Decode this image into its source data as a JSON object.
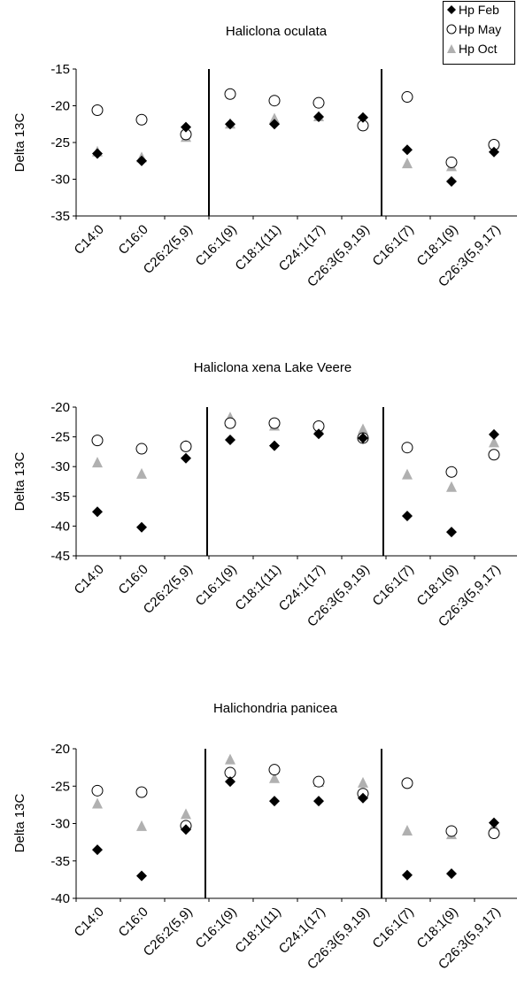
{
  "legend": [
    {
      "name": "Hp Feb",
      "marker": "diamond",
      "color": "#000000"
    },
    {
      "name": "Hp May",
      "marker": "circle",
      "color": "#000000"
    },
    {
      "name": "Hp Oct",
      "marker": "triangle",
      "color": "#b0b0b0"
    }
  ],
  "chart_data": [
    {
      "type": "scatter",
      "title": "Haliclona oculata",
      "ylabel": "Delta 13C",
      "ylim": [
        -35,
        -15
      ],
      "yticks": [
        -15,
        -20,
        -25,
        -30,
        -35
      ],
      "categories": [
        "C14:0",
        "C16:0",
        "C26:2(5,9)",
        "C16:1(9)",
        "C18:1(11)",
        "C24:1(17)",
        "C26:3(5,9,19)",
        "C16:1(7)",
        "C18:1(9)",
        "C26:3(5,9,17)"
      ],
      "series": [
        {
          "name": "Hp Feb",
          "values": [
            -26.5,
            -27.5,
            -22.9,
            -22.5,
            -22.5,
            -21.5,
            -21.6,
            -26,
            -30.3,
            -26.3
          ]
        },
        {
          "name": "Hp May",
          "values": [
            -20.6,
            -21.9,
            -23.9,
            -18.4,
            -19.3,
            -19.6,
            -22.7,
            -18.8,
            -27.7,
            -25.3
          ]
        },
        {
          "name": "Hp Oct",
          "values": [
            -26.3,
            -27.1,
            -24.3,
            -22.5,
            -21.8,
            -21.5,
            -22.3,
            -27.9,
            -28.3,
            -25.3
          ]
        }
      ]
    },
    {
      "type": "scatter",
      "title": "Haliclona xena Lake Veere",
      "ylabel": "Delta 13C",
      "ylim": [
        -45,
        -20
      ],
      "yticks": [
        -20,
        -25,
        -30,
        -35,
        -40,
        -45
      ],
      "categories": [
        "C14:0",
        "C16:0",
        "C26:2(5,9)",
        "C16:1(9)",
        "C18:1(11)",
        "C24:1(17)",
        "C26:3(5,9,19)",
        "C16:1(7)",
        "C18:1(9)",
        "C26:3(5,9,17)"
      ],
      "series": [
        {
          "name": "Hp Feb",
          "values": [
            -37.6,
            -40.2,
            -28.6,
            -25.5,
            -26.5,
            -24.5,
            -25.2,
            -38.3,
            -41,
            -24.6
          ]
        },
        {
          "name": "Hp May",
          "values": [
            -25.6,
            -27,
            -26.6,
            -22.7,
            -22.7,
            -23.2,
            -25.2,
            -26.8,
            -30.9,
            -28
          ]
        },
        {
          "name": "Hp Oct",
          "values": [
            -29.4,
            -31.3,
            -26.5,
            -21.8,
            -23.2,
            -23.8,
            -23.8,
            -31.4,
            -33.5,
            -26
          ]
        }
      ]
    },
    {
      "type": "scatter",
      "title": "Halichondria panicea",
      "ylabel": "Delta 13C",
      "ylim": [
        -40,
        -20
      ],
      "yticks": [
        -20,
        -25,
        -30,
        -35,
        -40
      ],
      "categories": [
        "C14:0",
        "C16:0",
        "C26:2(5,9)",
        "C16:1(9)",
        "C18:1(11)",
        "C24:1(17)",
        "C26:3(5,9,19)",
        "C16:1(7)",
        "C18:1(9)",
        "C26:3(5,9,17)"
      ],
      "series": [
        {
          "name": "Hp Feb",
          "values": [
            -33.5,
            -37,
            -30.8,
            -24.4,
            -27,
            -27,
            -26.6,
            -36.9,
            -36.7,
            -29.9
          ]
        },
        {
          "name": "Hp May",
          "values": [
            -25.6,
            -25.8,
            -30.3,
            -23.2,
            -22.8,
            -24.4,
            -26,
            -24.6,
            -31,
            -31.3
          ]
        },
        {
          "name": "Hp Oct",
          "values": [
            -27.4,
            -30.4,
            -28.8,
            -21.5,
            -24,
            -24.5,
            -24.6,
            -31,
            -31.5,
            -30.4
          ]
        }
      ]
    }
  ]
}
